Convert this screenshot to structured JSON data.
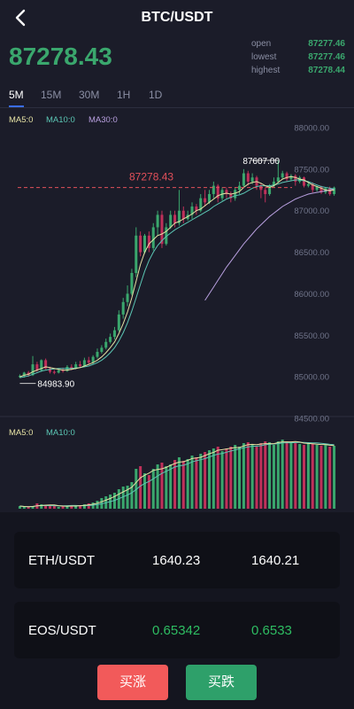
{
  "header": {
    "title": "BTC/USDT"
  },
  "price": {
    "current": "87278.43"
  },
  "stats": [
    {
      "label": "open",
      "value": "87277.46"
    },
    {
      "label": "lowest",
      "value": "87277.46"
    },
    {
      "label": "highest",
      "value": "87278.44"
    }
  ],
  "tabs": [
    "5M",
    "15M",
    "30M",
    "1H",
    "1D"
  ],
  "ma_legend": {
    "ma5": "MA5:0",
    "ma10": "MA10:0",
    "ma30": "MA30:0"
  },
  "vol_legend": {
    "ma5": "MA5:0",
    "ma10": "MA10:0"
  },
  "colors": {
    "up": "#3aa76d",
    "down": "#c0305a",
    "ma5": "#e6e2a4",
    "ma10": "#5bc6b4",
    "ma30": "#b9a0e0",
    "current_line": "#e2505a",
    "btn_rise": "#f25a5a",
    "btn_fall": "#2ea06a"
  },
  "chart_data": {
    "type": "candlestick",
    "y_ticks": [
      "88000.00",
      "87500.00",
      "87000.00",
      "86500.00",
      "86000.00",
      "85500.00",
      "85000.00",
      "84500.00"
    ],
    "ylim": [
      84500,
      88000
    ],
    "current_price_label": "87278.43",
    "current_price": 87278.43,
    "high_label": "87607.00",
    "high_value": 87607.0,
    "low_label": "84983.90",
    "low_value": 84983.9,
    "candles": [
      [
        85000,
        85010,
        84985,
        85030
      ],
      [
        85010,
        85050,
        84990,
        85060
      ],
      [
        85050,
        85020,
        85000,
        85070
      ],
      [
        85020,
        85150,
        85010,
        85250
      ],
      [
        85150,
        85080,
        85060,
        85180
      ],
      [
        85080,
        85200,
        85060,
        85210
      ],
      [
        85200,
        85100,
        85090,
        85220
      ],
      [
        85100,
        85060,
        85040,
        85120
      ],
      [
        85060,
        85050,
        85030,
        85080
      ],
      [
        85050,
        85080,
        85040,
        85100
      ],
      [
        85080,
        85070,
        85050,
        85110
      ],
      [
        85070,
        85120,
        85060,
        85140
      ],
      [
        85120,
        85100,
        85080,
        85150
      ],
      [
        85100,
        85150,
        85090,
        85180
      ],
      [
        85150,
        85130,
        85110,
        85190
      ],
      [
        85130,
        85200,
        85120,
        85230
      ],
      [
        85200,
        85170,
        85150,
        85240
      ],
      [
        85170,
        85240,
        85150,
        85260
      ],
      [
        85240,
        85300,
        85220,
        85340
      ],
      [
        85300,
        85350,
        85280,
        85380
      ],
      [
        85350,
        85420,
        85330,
        85460
      ],
      [
        85420,
        85480,
        85400,
        85520
      ],
      [
        85480,
        85560,
        85450,
        85600
      ],
      [
        85560,
        85750,
        85540,
        85800
      ],
      [
        85750,
        85900,
        85700,
        85950
      ],
      [
        85900,
        86000,
        85850,
        86100
      ],
      [
        86000,
        86250,
        85980,
        86300
      ],
      [
        86250,
        86700,
        86200,
        86800
      ],
      [
        86700,
        86500,
        86450,
        86750
      ],
      [
        86500,
        86700,
        86480,
        86720
      ],
      [
        86700,
        86550,
        86500,
        86750
      ],
      [
        86550,
        86800,
        86520,
        86850
      ],
      [
        86800,
        86950,
        86700,
        87000
      ],
      [
        86950,
        86600,
        86550,
        87000
      ],
      [
        86600,
        86800,
        86580,
        86850
      ],
      [
        86800,
        86950,
        86780,
        87000
      ],
      [
        86950,
        86850,
        86800,
        87000
      ],
      [
        86850,
        87000,
        86820,
        87250
      ],
      [
        87000,
        86900,
        86850,
        87050
      ],
      [
        86900,
        86950,
        86880,
        87000
      ],
      [
        86950,
        87050,
        86900,
        87100
      ],
      [
        87050,
        87000,
        86950,
        87080
      ],
      [
        87000,
        87150,
        86980,
        87200
      ],
      [
        87150,
        87100,
        87050,
        87250
      ],
      [
        87100,
        87200,
        87080,
        87250
      ],
      [
        87200,
        87300,
        87150,
        87350
      ],
      [
        87300,
        87150,
        87100,
        87320
      ],
      [
        87150,
        87250,
        87120,
        87280
      ],
      [
        87250,
        87200,
        87150,
        87280
      ],
      [
        87200,
        87150,
        87100,
        87230
      ],
      [
        87150,
        87250,
        87120,
        87280
      ],
      [
        87250,
        87300,
        87200,
        87350
      ],
      [
        87300,
        87450,
        87280,
        87500
      ],
      [
        87450,
        87350,
        87300,
        87480
      ],
      [
        87350,
        87400,
        87320,
        87450
      ],
      [
        87400,
        87300,
        87250,
        87420
      ],
      [
        87300,
        87250,
        87150,
        87330
      ],
      [
        87250,
        87200,
        87100,
        87280
      ],
      [
        87200,
        87300,
        87180,
        87320
      ],
      [
        87300,
        87350,
        87280,
        87400
      ],
      [
        87350,
        87400,
        87330,
        87607
      ],
      [
        87400,
        87450,
        87380,
        87480
      ],
      [
        87450,
        87380,
        87350,
        87470
      ],
      [
        87380,
        87420,
        87360,
        87440
      ],
      [
        87420,
        87350,
        87300,
        87440
      ],
      [
        87350,
        87400,
        87330,
        87420
      ],
      [
        87400,
        87300,
        87280,
        87410
      ],
      [
        87300,
        87320,
        87280,
        87350
      ],
      [
        87320,
        87250,
        87220,
        87340
      ],
      [
        87250,
        87290,
        87230,
        87300
      ],
      [
        87290,
        87220,
        87200,
        87300
      ],
      [
        87220,
        87270,
        87200,
        87280
      ],
      [
        87270,
        87200,
        87180,
        87290
      ],
      [
        87200,
        87278,
        87180,
        87290
      ]
    ],
    "ma5": [
      85000,
      85020,
      85030,
      85060,
      85080,
      85100,
      85120,
      85110,
      85100,
      85090,
      85080,
      85080,
      85090,
      85100,
      85110,
      85130,
      85150,
      85170,
      85200,
      85240,
      85290,
      85350,
      85420,
      85520,
      85640,
      85780,
      85950,
      86150,
      86350,
      86500,
      86600,
      86650,
      86700,
      86720,
      86750,
      86800,
      86850,
      86870,
      86900,
      86930,
      86960,
      87000,
      87020,
      87060,
      87100,
      87140,
      87180,
      87200,
      87210,
      87200,
      87210,
      87230,
      87280,
      87320,
      87340,
      87350,
      87330,
      87300,
      87280,
      87300,
      87340,
      87380,
      87400,
      87410,
      87400,
      87380,
      87370,
      87340,
      87310,
      87290,
      87270,
      87250,
      87240,
      87250
    ],
    "ma10": [
      84990,
      85000,
      85010,
      85030,
      85050,
      85070,
      85080,
      85090,
      85095,
      85100,
      85100,
      85100,
      85100,
      85105,
      85110,
      85120,
      85130,
      85150,
      85170,
      85200,
      85240,
      85290,
      85350,
      85430,
      85530,
      85650,
      85790,
      85950,
      86110,
      86270,
      86400,
      86500,
      86580,
      86640,
      86690,
      86730,
      86770,
      86800,
      86830,
      86860,
      86890,
      86920,
      86950,
      86980,
      87010,
      87050,
      87080,
      87110,
      87140,
      87160,
      87180,
      87190,
      87210,
      87240,
      87270,
      87290,
      87300,
      87300,
      87300,
      87310,
      87320,
      87340,
      87350,
      87360,
      87370,
      87370,
      87360,
      87350,
      87330,
      87310,
      87290,
      87280,
      87270,
      87260
    ],
    "ma30_start_index": 43,
    "ma30": [
      85920,
      86000,
      86080,
      86160,
      86240,
      86320,
      86390,
      86460,
      86530,
      86600,
      86660,
      86720,
      86780,
      86830,
      86880,
      86930,
      86970,
      87010,
      87050,
      87080,
      87110,
      87140,
      87160,
      87180,
      87200,
      87210,
      87220,
      87230,
      87240,
      87250,
      87260
    ],
    "volume": [
      3,
      2,
      2,
      3,
      6,
      5,
      4,
      3,
      3,
      2,
      3,
      3,
      4,
      3,
      4,
      5,
      6,
      7,
      9,
      12,
      14,
      16,
      18,
      22,
      25,
      26,
      30,
      45,
      48,
      40,
      38,
      45,
      50,
      52,
      48,
      50,
      55,
      58,
      54,
      56,
      60,
      58,
      62,
      64,
      66,
      68,
      70,
      65,
      68,
      70,
      72,
      70,
      74,
      75,
      72,
      70,
      74,
      76,
      75,
      72,
      76,
      78,
      76,
      75,
      74,
      73,
      72,
      74,
      73,
      72,
      71,
      72,
      70,
      71
    ],
    "vol_ylim": [
      0,
      80
    ]
  },
  "pairs": [
    {
      "name": "ETH/USDT",
      "v1": "1640.23",
      "v2": "1640.21",
      "color": "#ffffff"
    },
    {
      "name": "EOS/USDT",
      "v1": "0.65342",
      "v2": "0.6533",
      "color": "#2ebd62"
    }
  ],
  "buttons": {
    "rise": "买涨",
    "fall": "买跌"
  }
}
